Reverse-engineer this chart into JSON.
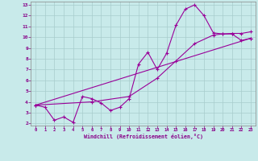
{
  "line1_x": [
    0,
    1,
    2,
    3,
    4,
    5,
    6,
    7,
    8,
    9,
    10,
    11,
    12,
    13,
    14,
    15,
    16,
    17,
    18,
    19,
    20,
    21,
    22,
    23
  ],
  "line1_y": [
    3.7,
    3.5,
    2.3,
    2.6,
    2.1,
    4.5,
    4.3,
    3.9,
    3.2,
    3.5,
    4.3,
    7.5,
    8.6,
    7.0,
    8.5,
    11.1,
    12.6,
    13.0,
    12.0,
    10.4,
    10.3,
    10.3,
    9.7,
    9.9
  ],
  "line2_x": [
    0,
    6,
    10,
    13,
    15,
    17,
    19,
    20,
    21,
    22,
    23
  ],
  "line2_y": [
    3.7,
    4.0,
    4.5,
    6.2,
    7.8,
    9.4,
    10.2,
    10.3,
    10.35,
    10.35,
    10.5
  ],
  "line3_x": [
    0,
    23
  ],
  "line3_y": [
    3.7,
    9.9
  ],
  "line_color": "#990099",
  "bg_color": "#c8eaea",
  "grid_color": "#a8cccc",
  "xlabel": "Windchill (Refroidissement éolien,°C)",
  "xlim": [
    -0.5,
    23.5
  ],
  "ylim": [
    1.8,
    13.3
  ],
  "xticks": [
    0,
    1,
    2,
    3,
    4,
    5,
    6,
    7,
    8,
    9,
    10,
    11,
    12,
    13,
    14,
    15,
    16,
    17,
    18,
    19,
    20,
    21,
    22,
    23
  ],
  "yticks": [
    2,
    3,
    4,
    5,
    6,
    7,
    8,
    9,
    10,
    11,
    12,
    13
  ],
  "marker": "+",
  "markersize": 3,
  "linewidth": 0.8
}
